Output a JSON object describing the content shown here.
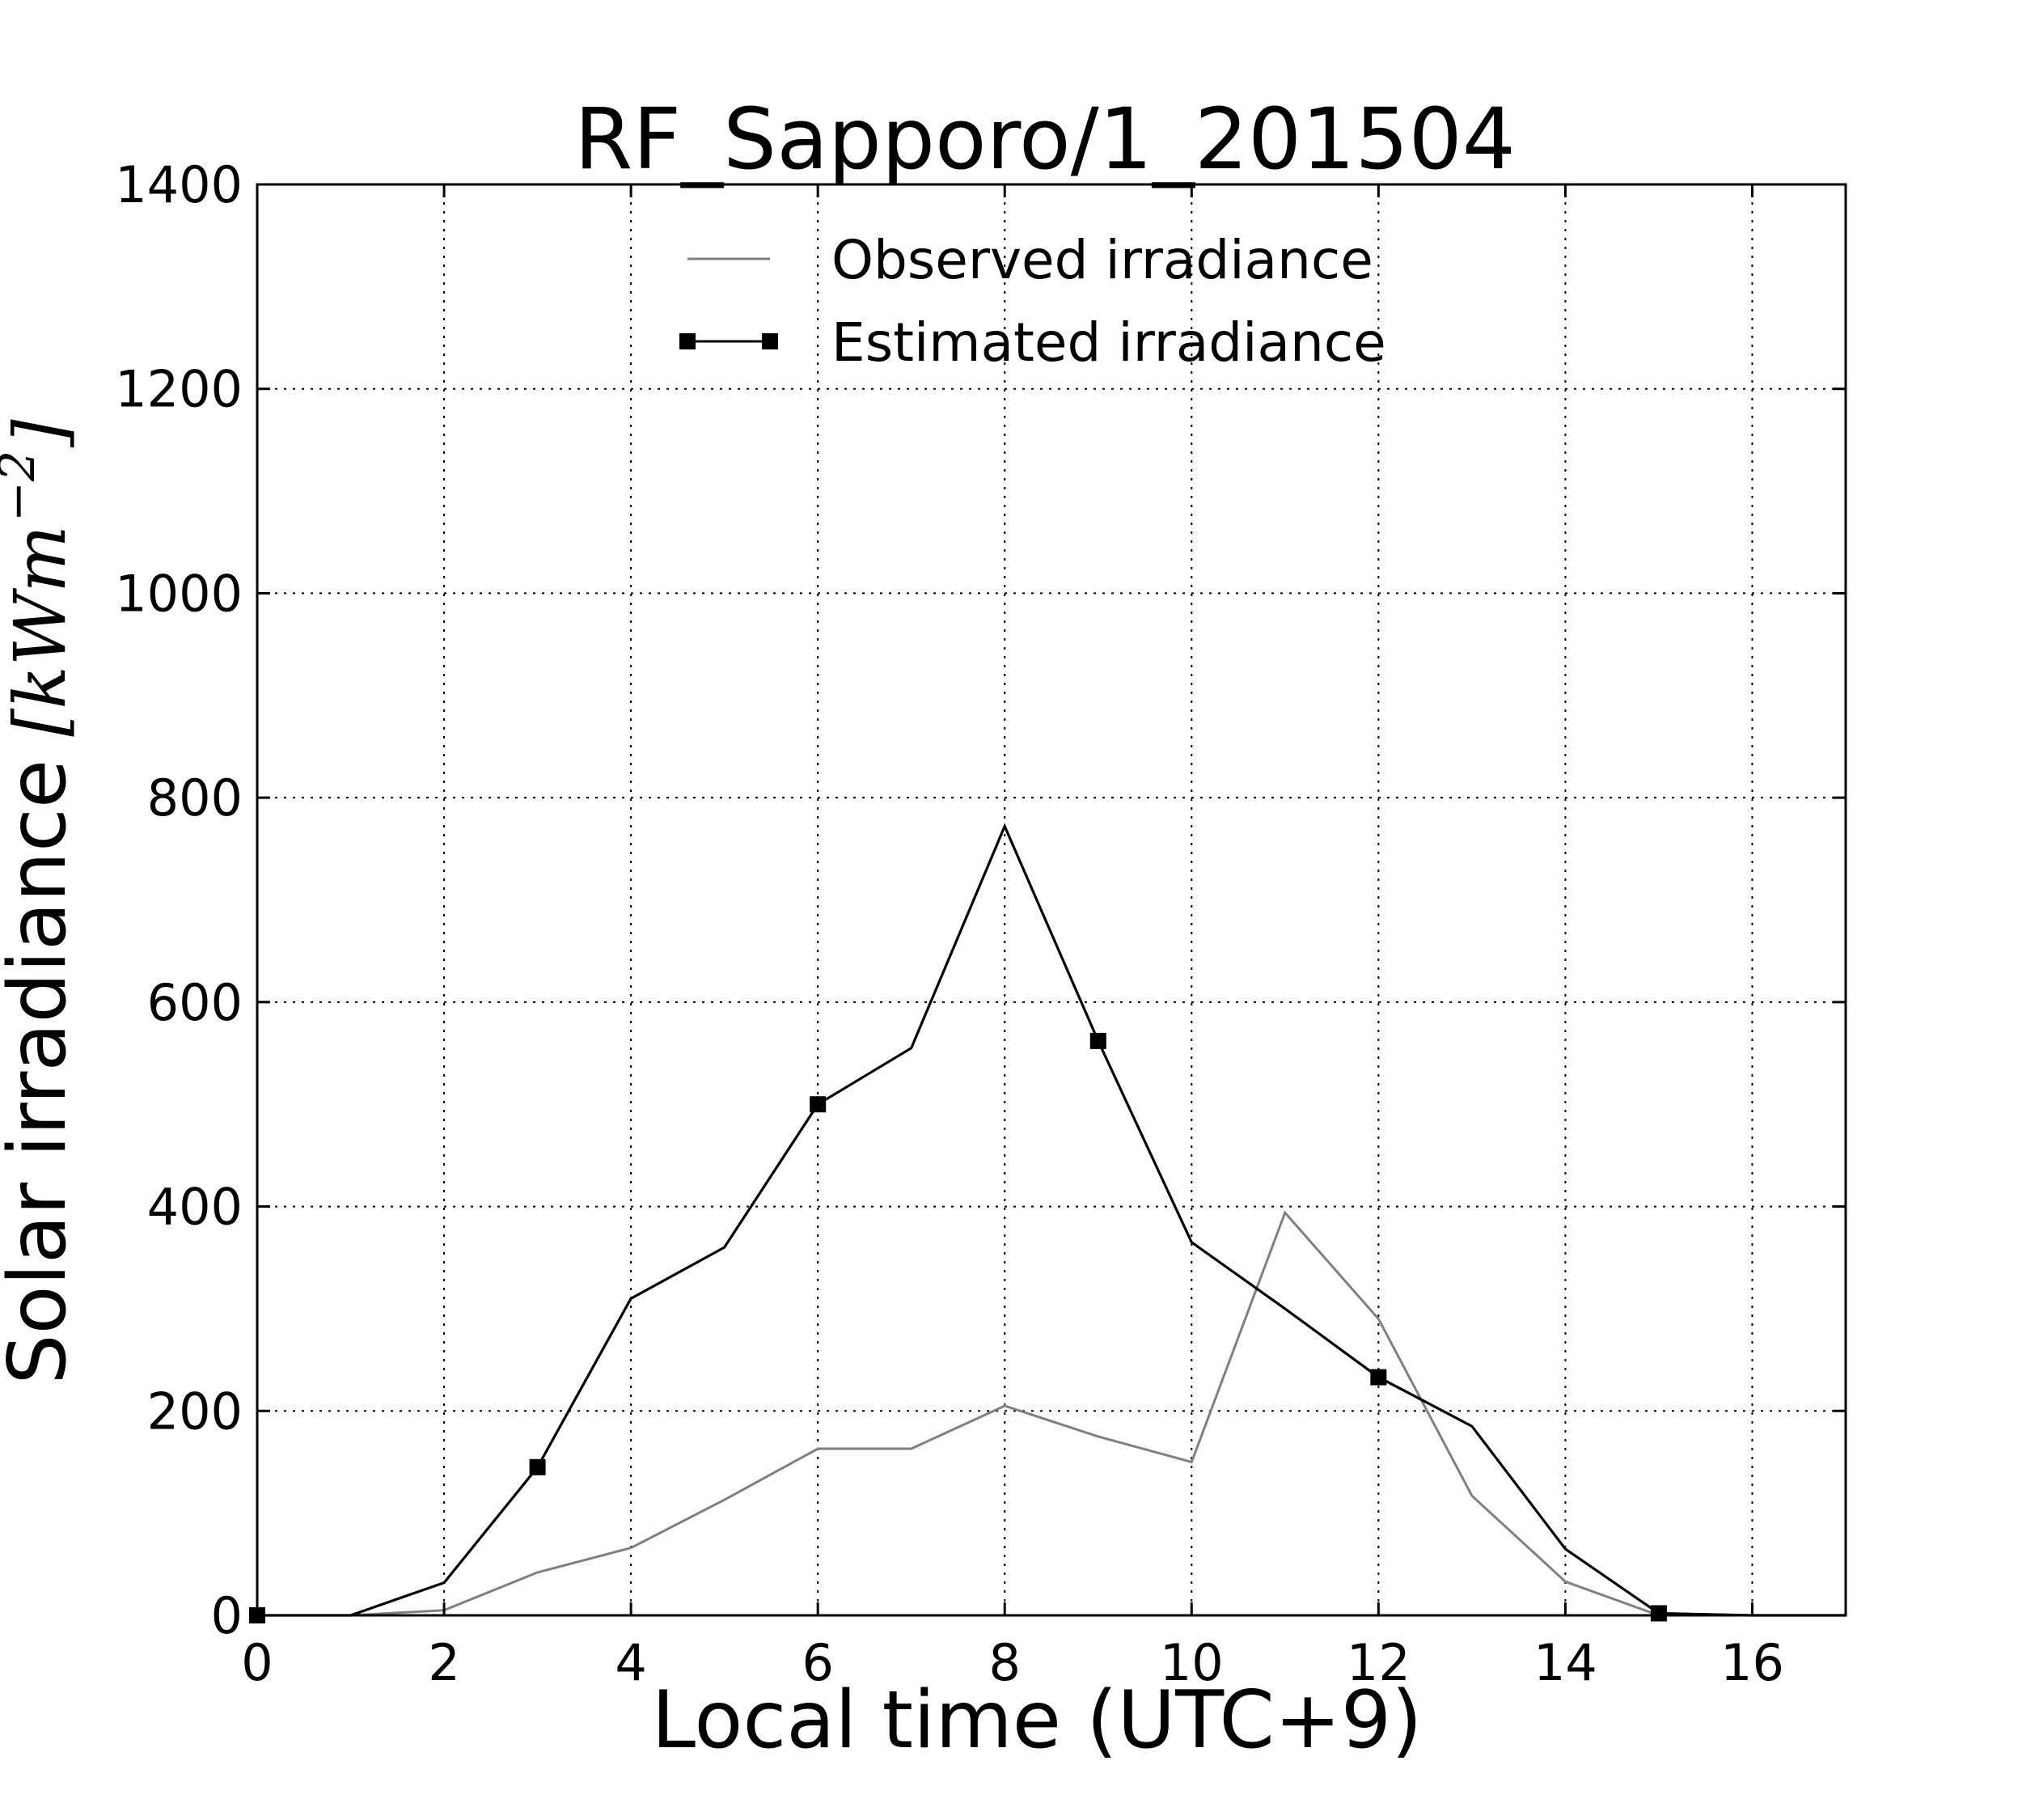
{
  "chart_data": {
    "type": "line",
    "title": "RF_Sapporo/1_201504",
    "xlabel": "Local time (UTC+9)",
    "ylabel": {
      "text": "Solar irradiance",
      "unit": "[kWm",
      "unit_exponent": "−2",
      "unit_close": "]"
    },
    "xlim": [
      0,
      17
    ],
    "ylim": [
      0,
      1400
    ],
    "xticks": [
      "0",
      "2",
      "4",
      "6",
      "8",
      "10",
      "12",
      "14",
      "16"
    ],
    "yticks": [
      "0",
      "200",
      "400",
      "600",
      "800",
      "1000",
      "1200",
      "1400"
    ],
    "grid": true,
    "legend_position": "upper center",
    "x": [
      0,
      1,
      2,
      3,
      4,
      5,
      6,
      7,
      8,
      9,
      10,
      11,
      12,
      13,
      14,
      15,
      16,
      17
    ],
    "series": [
      {
        "name": "Observed irradiance",
        "color": "#808080",
        "marker": "none",
        "values": [
          0,
          0,
          5,
          42,
          66,
          113,
          163,
          163,
          205,
          175,
          150,
          394,
          290,
          117,
          33,
          0,
          0,
          0
        ]
      },
      {
        "name": "Estimated irradiance",
        "color": "#000000",
        "marker": "square",
        "marker_every": 3,
        "values": [
          0,
          0,
          32,
          145,
          310,
          360,
          500,
          555,
          772,
          562,
          365,
          300,
          233,
          185,
          65,
          2,
          0,
          0
        ]
      }
    ]
  }
}
